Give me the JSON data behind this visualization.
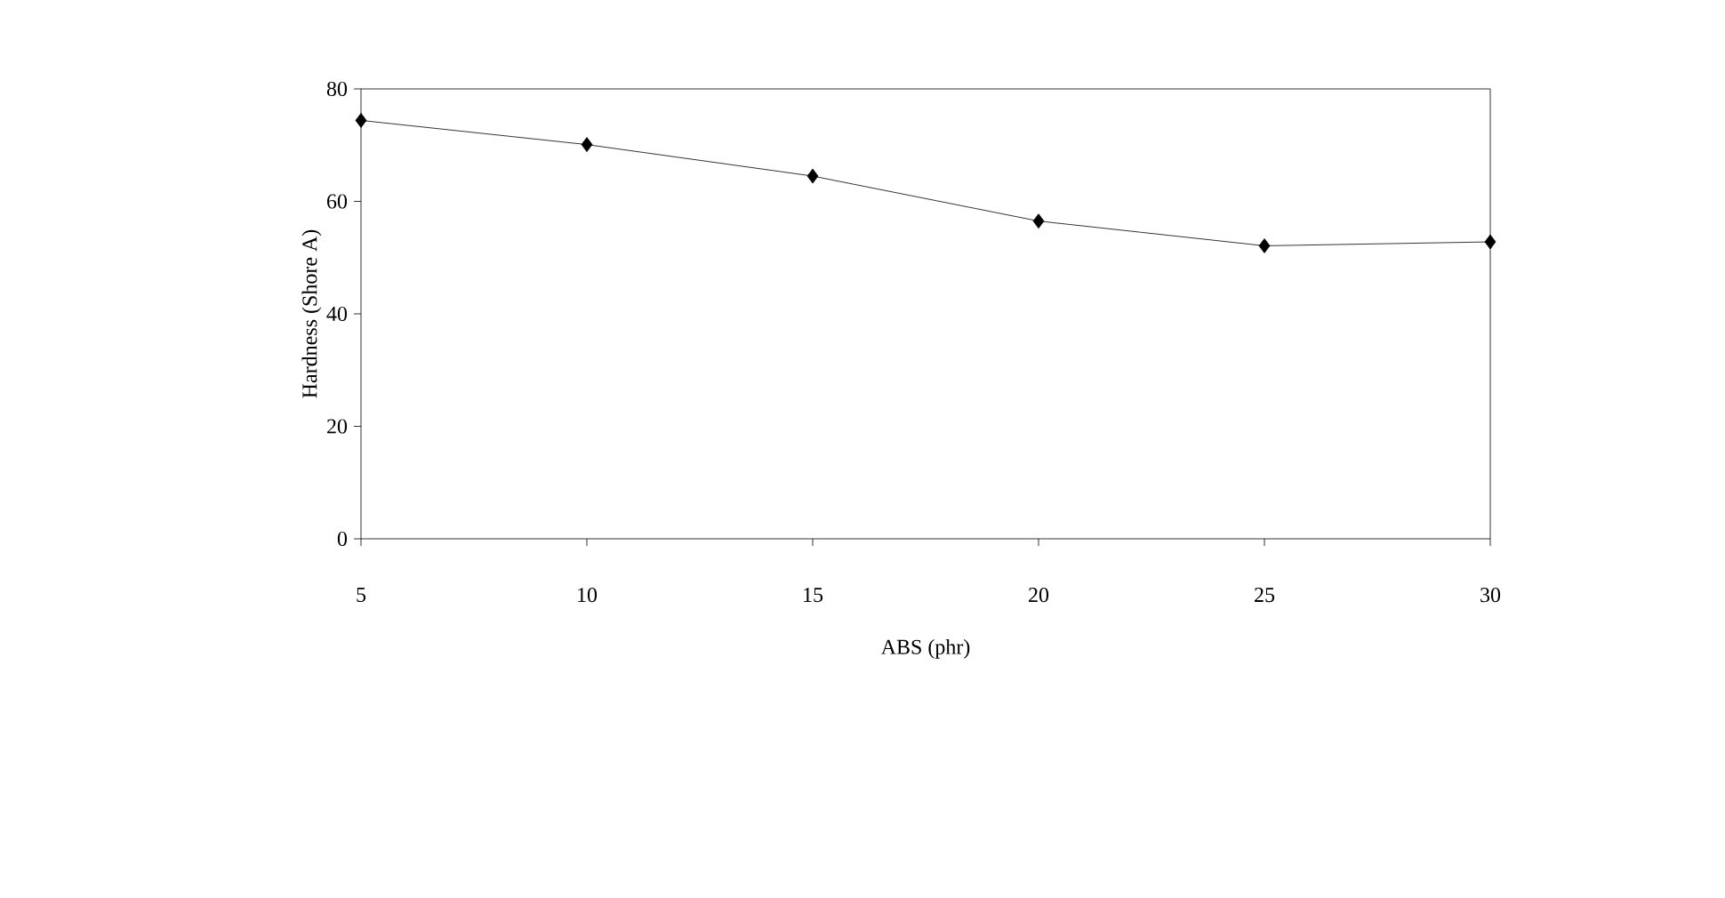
{
  "chart_data": {
    "type": "line",
    "xlabel": "ABS (phr)",
    "ylabel": "Hardness (Shore A)",
    "x": [
      5,
      10,
      15,
      20,
      25,
      30
    ],
    "values": [
      74.4,
      70.1,
      64.5,
      56.5,
      52.1,
      52.8
    ],
    "color": "#000000",
    "marker": "diamond",
    "line_style": "solid",
    "xlim": [
      5,
      30
    ],
    "xticks": [
      5,
      10,
      15,
      20,
      25,
      30
    ],
    "ylim": [
      0,
      80
    ],
    "yticks": [
      0,
      20,
      40,
      60,
      80
    ],
    "grid": false
  }
}
